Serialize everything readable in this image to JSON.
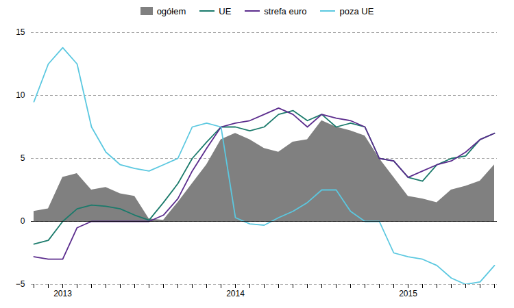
{
  "chart_data": {
    "type": "line",
    "categories": [
      null,
      null,
      "2013",
      null,
      null,
      null,
      null,
      null,
      null,
      null,
      null,
      null,
      null,
      null,
      "2014",
      null,
      null,
      null,
      null,
      null,
      null,
      null,
      null,
      null,
      null,
      null,
      "2015",
      null,
      null,
      null,
      null,
      null,
      null
    ],
    "series": [
      {
        "name": "ogółem",
        "type": "area",
        "color": "#808080",
        "values": [
          0.8,
          1.0,
          3.5,
          3.8,
          2.5,
          2.7,
          2.2,
          2.0,
          0.2,
          0.1,
          1.5,
          3.0,
          4.5,
          6.5,
          7.0,
          6.5,
          5.8,
          5.5,
          6.3,
          6.5,
          8.0,
          7.5,
          7.2,
          6.8,
          5.0,
          3.5,
          2.0,
          1.8,
          1.5,
          2.5,
          2.8,
          3.2,
          4.5
        ]
      },
      {
        "name": "UE",
        "type": "line",
        "color": "#1a7a6b",
        "values": [
          -1.8,
          -1.5,
          0.0,
          1.0,
          1.3,
          1.2,
          1.0,
          0.5,
          0.1,
          1.5,
          3.0,
          5.0,
          6.3,
          7.5,
          7.5,
          7.2,
          7.5,
          8.5,
          8.8,
          8.0,
          8.5,
          7.5,
          7.8,
          7.5,
          5.0,
          4.8,
          3.5,
          3.2,
          4.5,
          5.0,
          5.2,
          6.5,
          7.0
        ]
      },
      {
        "name": "strefa euro",
        "type": "line",
        "color": "#5b2c8d",
        "values": [
          -2.8,
          -3.0,
          -3.0,
          -0.5,
          0.0,
          0.0,
          0.0,
          0.0,
          0.0,
          0.5,
          1.8,
          4.0,
          5.8,
          7.5,
          7.8,
          8.0,
          8.5,
          9.0,
          8.5,
          7.5,
          8.5,
          8.2,
          8.0,
          7.5,
          5.0,
          4.8,
          3.5,
          4.0,
          4.5,
          4.8,
          5.5,
          6.5,
          7.0
        ]
      },
      {
        "name": "poza UE",
        "type": "line",
        "color": "#5bc8e0",
        "values": [
          9.5,
          12.5,
          13.8,
          12.5,
          7.5,
          5.5,
          4.5,
          4.2,
          4.0,
          4.5,
          5.0,
          7.5,
          7.8,
          7.5,
          0.3,
          -0.2,
          -0.3,
          0.3,
          0.8,
          1.5,
          2.5,
          2.5,
          0.8,
          0.0,
          0.0,
          -2.5,
          -2.8,
          -3.0,
          -3.5,
          -4.5,
          -5.0,
          -4.8,
          -3.5
        ]
      }
    ],
    "ylim": [
      -5,
      15
    ],
    "yticks": [
      -5,
      0,
      5,
      10,
      15
    ],
    "grid": true,
    "legend": "top"
  }
}
